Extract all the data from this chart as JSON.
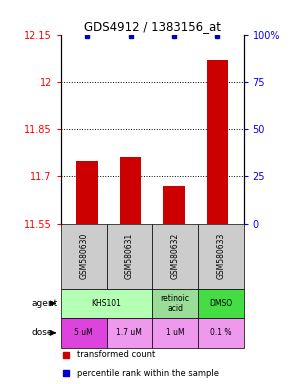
{
  "title": "GDS4912 / 1383156_at",
  "samples": [
    "GSM580630",
    "GSM580631",
    "GSM580632",
    "GSM580633"
  ],
  "bar_values": [
    11.75,
    11.76,
    11.67,
    12.07
  ],
  "percentile_values": [
    99,
    99,
    99,
    99
  ],
  "ylim_left": [
    11.55,
    12.15
  ],
  "ylim_right": [
    0,
    100
  ],
  "yticks_left": [
    11.55,
    11.7,
    11.85,
    12.0,
    12.15
  ],
  "yticks_right": [
    0,
    25,
    50,
    75,
    100
  ],
  "ytick_labels_left": [
    "11.55",
    "11.7",
    "11.85",
    "12",
    "12.15"
  ],
  "ytick_labels_right": [
    "0",
    "25",
    "50",
    "75",
    "100%"
  ],
  "gridlines": [
    11.7,
    11.85,
    12.0
  ],
  "bar_color": "#cc0000",
  "percentile_color": "#0000cc",
  "bar_bottom": 11.55,
  "agent_groups": [
    {
      "cols": [
        0,
        1
      ],
      "text": "KHS101",
      "color": "#b3ffb3"
    },
    {
      "cols": [
        2
      ],
      "text": "retinoic\nacid",
      "color": "#99dd99"
    },
    {
      "cols": [
        3
      ],
      "text": "DMSO",
      "color": "#44dd44"
    }
  ],
  "dose_labels": [
    "5 uM",
    "1.7 uM",
    "1 uM",
    "0.1 %"
  ],
  "dose_colors": [
    "#dd44dd",
    "#ee99ee",
    "#ee99ee",
    "#ee99ee"
  ],
  "sample_bg": "#cccccc",
  "legend_bar_color": "#cc0000",
  "legend_pct_color": "#0000cc"
}
